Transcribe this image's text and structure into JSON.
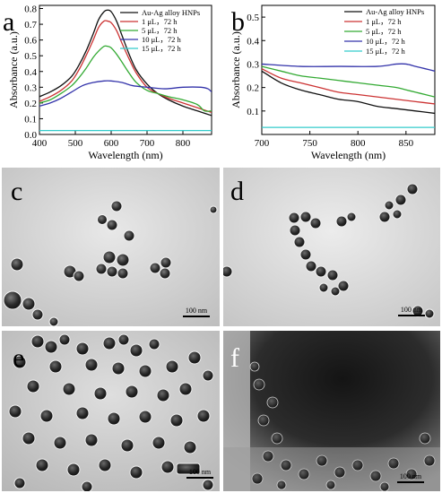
{
  "panels": {
    "a": {
      "letter": "a"
    },
    "b": {
      "letter": "b"
    },
    "c": {
      "letter": "c",
      "scale": "100 nm"
    },
    "d": {
      "letter": "d",
      "scale": "100 nm"
    },
    "e": {
      "letter": "e",
      "scale": "100 nm"
    },
    "f": {
      "letter": "f",
      "scale": "100 nm"
    }
  },
  "chart_data": [
    {
      "type": "line",
      "panel": "a",
      "title": "",
      "xlabel": "Wavelength (nm)",
      "ylabel": "Absorbance (a.u.)",
      "xlim": [
        400,
        880
      ],
      "ylim": [
        0,
        0.82
      ],
      "xticks": [
        400,
        500,
        600,
        700,
        800
      ],
      "yticks": [
        0.0,
        0.1,
        0.2,
        0.3,
        0.4,
        0.5,
        0.6,
        0.7,
        0.8
      ],
      "legend_position": "top-right",
      "series": [
        {
          "name": "Au-Ag alloy HNPs",
          "color": "#111111",
          "x": [
            400,
            430,
            460,
            490,
            510,
            530,
            550,
            565,
            580,
            590,
            600,
            615,
            630,
            650,
            670,
            700,
            730,
            760,
            800,
            840,
            880
          ],
          "y": [
            0.24,
            0.27,
            0.31,
            0.37,
            0.44,
            0.53,
            0.64,
            0.73,
            0.78,
            0.79,
            0.78,
            0.72,
            0.63,
            0.51,
            0.41,
            0.32,
            0.26,
            0.22,
            0.18,
            0.15,
            0.12
          ]
        },
        {
          "name": "1   μL，72 h",
          "color": "#cc3333",
          "x": [
            400,
            430,
            460,
            490,
            510,
            530,
            550,
            565,
            580,
            590,
            600,
            615,
            630,
            650,
            670,
            700,
            730,
            760,
            800,
            840,
            880
          ],
          "y": [
            0.21,
            0.24,
            0.28,
            0.34,
            0.41,
            0.5,
            0.6,
            0.68,
            0.72,
            0.72,
            0.71,
            0.66,
            0.58,
            0.48,
            0.39,
            0.3,
            0.26,
            0.23,
            0.2,
            0.17,
            0.14
          ]
        },
        {
          "name": "5   μL，72 h",
          "color": "#33aa33",
          "x": [
            400,
            430,
            460,
            490,
            510,
            530,
            550,
            565,
            580,
            590,
            600,
            615,
            630,
            650,
            670,
            700,
            730,
            760,
            800,
            840,
            860,
            880
          ],
          "y": [
            0.2,
            0.22,
            0.26,
            0.31,
            0.36,
            0.42,
            0.49,
            0.53,
            0.56,
            0.56,
            0.55,
            0.51,
            0.46,
            0.39,
            0.33,
            0.28,
            0.26,
            0.24,
            0.22,
            0.19,
            0.15,
            0.15
          ]
        },
        {
          "name": "10  μL，72 h",
          "color": "#3333aa",
          "x": [
            400,
            430,
            460,
            490,
            520,
            550,
            580,
            600,
            630,
            660,
            700,
            750,
            800,
            850,
            870,
            880
          ],
          "y": [
            0.18,
            0.2,
            0.23,
            0.27,
            0.31,
            0.33,
            0.34,
            0.34,
            0.33,
            0.31,
            0.3,
            0.29,
            0.3,
            0.3,
            0.29,
            0.27
          ]
        },
        {
          "name": "15  μL，72 h",
          "color": "#33cccc",
          "x": [
            400,
            500,
            600,
            700,
            800,
            880
          ],
          "y": [
            0.025,
            0.025,
            0.025,
            0.025,
            0.025,
            0.025
          ]
        }
      ]
    },
    {
      "type": "line",
      "panel": "b",
      "title": "",
      "xlabel": "Wavelength (nm)",
      "ylabel": "Absorbance (a.u.)",
      "xlim": [
        700,
        880
      ],
      "ylim": [
        0,
        0.55
      ],
      "xticks": [
        700,
        750,
        800,
        850
      ],
      "yticks": [
        0.1,
        0.2,
        0.3,
        0.4,
        0.5
      ],
      "legend_position": "top-right",
      "series": [
        {
          "name": "Au-Ag alloy HNPs",
          "color": "#111111",
          "x": [
            700,
            720,
            740,
            760,
            780,
            800,
            820,
            840,
            860,
            880
          ],
          "y": [
            0.27,
            0.22,
            0.19,
            0.17,
            0.15,
            0.14,
            0.12,
            0.11,
            0.1,
            0.09
          ]
        },
        {
          "name": "1   μL，72 h",
          "color": "#cc3333",
          "x": [
            700,
            720,
            740,
            760,
            780,
            800,
            820,
            840,
            860,
            880
          ],
          "y": [
            0.28,
            0.24,
            0.22,
            0.2,
            0.18,
            0.17,
            0.16,
            0.15,
            0.14,
            0.13
          ]
        },
        {
          "name": "5   μL，72 h",
          "color": "#33aa33",
          "x": [
            700,
            720,
            740,
            760,
            780,
            800,
            820,
            840,
            850,
            860,
            870,
            880
          ],
          "y": [
            0.29,
            0.27,
            0.25,
            0.24,
            0.23,
            0.22,
            0.21,
            0.2,
            0.19,
            0.18,
            0.17,
            0.16
          ]
        },
        {
          "name": "10  μL，72 h",
          "color": "#3333aa",
          "x": [
            700,
            740,
            780,
            820,
            840,
            850,
            860,
            870,
            880
          ],
          "y": [
            0.3,
            0.29,
            0.29,
            0.29,
            0.3,
            0.3,
            0.29,
            0.28,
            0.27
          ]
        },
        {
          "name": "15  μL，72 h",
          "color": "#33cccc",
          "x": [
            700,
            880
          ],
          "y": [
            0.03,
            0.03
          ]
        }
      ]
    }
  ]
}
